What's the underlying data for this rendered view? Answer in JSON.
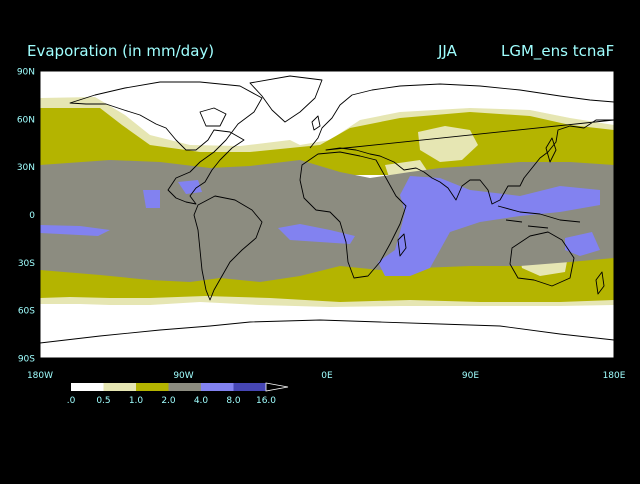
{
  "header": {
    "title": "Evaporation (in mm/day)",
    "season": "JJA",
    "experiment": "LGM_ens tcnaF"
  },
  "map": {
    "lat_labels": [
      "90N",
      "60N",
      "30N",
      "0",
      "30S",
      "60S",
      "90S"
    ],
    "lat_values": [
      90,
      60,
      30,
      0,
      -30,
      -60,
      -90
    ],
    "lon_labels": [
      "180W",
      "90W",
      "0E",
      "90E",
      "180E"
    ],
    "lon_values": [
      -180,
      -90,
      0,
      90,
      180
    ]
  },
  "legend": {
    "labels": [
      ".0",
      "0.5",
      "1.0",
      "2.0",
      "4.0",
      "8.0",
      "16.0"
    ],
    "colors": [
      "#ffffff",
      "#e6e6b3",
      "#b4b400",
      "#8c8c80",
      "#8282f0",
      "#4646b4"
    ]
  },
  "colors": {
    "background": "#000000",
    "text": "#a0ffff",
    "frame": "#000000",
    "coast": "#000000",
    "c_white": "#ffffff",
    "c_light": "#e6e6b3",
    "c_olive": "#b4b400",
    "c_gray": "#8c8c80",
    "c_blue": "#8282f0",
    "c_navy": "#4646b4"
  }
}
